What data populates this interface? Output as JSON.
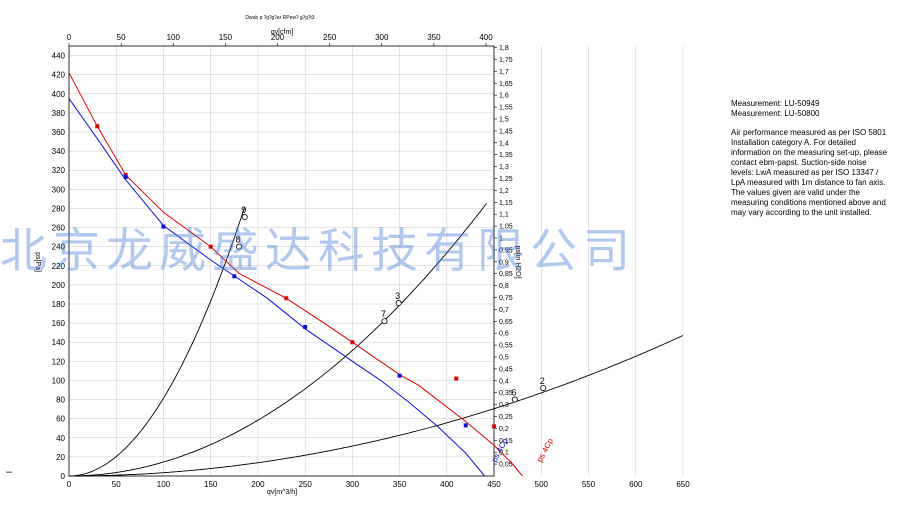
{
  "chart_data": {
    "type": "line",
    "title": "Dwub p ʔgʔgʔar RPewʔ gʔgʔt3",
    "xlabel": "qv[m^3/h]",
    "x2label": "qv[cfm]",
    "ylabel": "ps[Pa]",
    "y2label": "ps[in H2O]",
    "xlim": [
      0,
      680
    ],
    "ylim": [
      0,
      450
    ],
    "x_ticks": [
      "0",
      "50",
      "100",
      "150",
      "200",
      "250",
      "300",
      "350",
      "400",
      "450",
      "500",
      "550",
      "600",
      "650"
    ],
    "x2_ticks": [
      "0",
      "50",
      "100",
      "150",
      "200",
      "250",
      "300",
      "350",
      "400"
    ],
    "y_ticks": [
      "0",
      "20",
      "40",
      "60",
      "80",
      "100",
      "120",
      "140",
      "160",
      "180",
      "200",
      "220",
      "240",
      "260",
      "280",
      "300",
      "320",
      "340",
      "360",
      "380",
      "400",
      "420",
      "440"
    ],
    "y2_ticks": [
      "0,05",
      "0,1",
      "0,15",
      "0,2",
      "0,25",
      "0,3",
      "0,35",
      "0,4",
      "0,45",
      "0,5",
      "0,55",
      "0,6",
      "0,65",
      "0,7",
      "0,75",
      "0,8",
      "0,85",
      "0,9",
      "0,95",
      "1",
      "1,05",
      "1,1",
      "1,15",
      "1,2",
      "1,25",
      "1,3",
      "1,35",
      "1,4",
      "1,45",
      "1,5",
      "1,55",
      "1,6",
      "1,65",
      "1,7",
      "1,75",
      "1,8"
    ],
    "grid": true,
    "series": [
      {
        "name": "LU-50949",
        "color": "#e00000",
        "points": [
          [
            0,
            422
          ],
          [
            30,
            366
          ],
          [
            60,
            315
          ],
          [
            100,
            276
          ],
          [
            150,
            240
          ],
          [
            180,
            212
          ],
          [
            230,
            186
          ],
          [
            270,
            160
          ],
          [
            300,
            140
          ],
          [
            350,
            106
          ],
          [
            370,
            95
          ],
          [
            420,
            57
          ],
          [
            450,
            32
          ],
          [
            470,
            12
          ],
          [
            480,
            0
          ]
        ],
        "markers": [
          [
            30,
            366
          ],
          [
            60,
            315
          ],
          [
            150,
            240
          ],
          [
            230,
            186
          ],
          [
            300,
            140
          ],
          [
            410,
            102
          ],
          [
            450,
            52
          ]
        ]
      },
      {
        "name": "LU-50800",
        "color": "#1010e0",
        "points": [
          [
            0,
            395
          ],
          [
            30,
            353
          ],
          [
            60,
            310
          ],
          [
            100,
            262
          ],
          [
            150,
            226
          ],
          [
            210,
            186
          ],
          [
            250,
            154
          ],
          [
            300,
            120
          ],
          [
            330,
            100
          ],
          [
            360,
            77
          ],
          [
            390,
            52
          ],
          [
            420,
            24
          ],
          [
            440,
            0
          ]
        ],
        "markers": [
          [
            60,
            313
          ],
          [
            100,
            261
          ],
          [
            175,
            209
          ],
          [
            250,
            156
          ],
          [
            350,
            105
          ],
          [
            420,
            53
          ]
        ]
      }
    ],
    "system_curves": [
      {
        "label_points": [
          "8",
          "9"
        ],
        "k": 0.00814,
        "x_end": 186
      },
      {
        "label_points": [
          "7",
          "3"
        ],
        "k": 0.00146,
        "x_end": 443
      },
      {
        "label_points": [
          "6",
          "2"
        ],
        "k": 0.000348,
        "x_end": 650
      }
    ],
    "operating_points": [
      {
        "label": "8",
        "x": 180,
        "y": 240
      },
      {
        "label": "9",
        "x": 186,
        "y": 271
      },
      {
        "label": "7",
        "x": 334,
        "y": 162
      },
      {
        "label": "3",
        "x": 349,
        "y": 181
      },
      {
        "label": "6",
        "x": 472,
        "y": 80
      },
      {
        "label": "2",
        "x": 502,
        "y": 92
      }
    ],
    "curve_labels": [
      {
        "text": "ps 4Cp",
        "color": "#1010e0"
      },
      {
        "text": "ps 4Cp",
        "color": "#e00000"
      }
    ]
  },
  "info": {
    "measurement_1": "Measurement: LU-50949",
    "measurement_2": "Measurement: LU-50800",
    "note": "Air performance measured as per ISO 5801 Installation category A. For detailed information on the measuring set-up, please contact ebm-papst. Suction-side noise levels: LwA measured as per ISO 13347 / LpA measured with 1m distance to fan axis. The values given are valid under the measuring conditions mentioned above and may vary according to the unit installed."
  },
  "watermark": "北京龙威盛达科技有限公司",
  "stray_mark": "–"
}
